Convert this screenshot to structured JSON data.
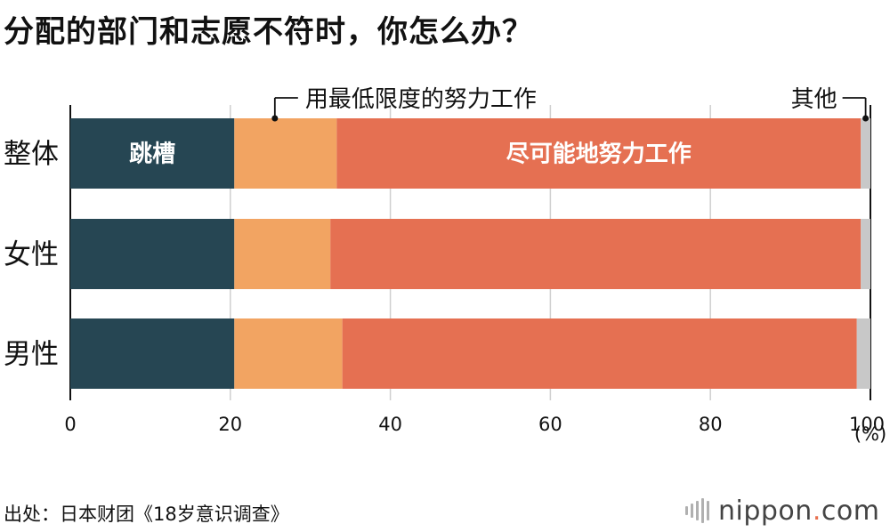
{
  "title": "分配的部门和志愿不符时，你怎么办？",
  "source": "出处：日本财团《18岁意识调查》",
  "logo": {
    "name": "nippon",
    "dot": ".",
    "tld": "com"
  },
  "chart_data": {
    "type": "bar",
    "orientation": "horizontal",
    "stacked": true,
    "categories": [
      "整体",
      "女性",
      "男性"
    ],
    "series": [
      {
        "name": "跳槽",
        "color": "#264653",
        "values": [
          20.5,
          20.5,
          20.5
        ]
      },
      {
        "name": "用最低限度的努力工作",
        "color": "#f2a462",
        "values": [
          12.8,
          12.0,
          13.5
        ]
      },
      {
        "name": "尽可能地努力工作",
        "color": "#e57052",
        "values": [
          65.5,
          66.3,
          64.3
        ]
      },
      {
        "name": "其他",
        "color": "#c8c8c8",
        "values": [
          1.2,
          1.2,
          1.7
        ]
      }
    ],
    "xlim": [
      0,
      100
    ],
    "xticks": [
      "0",
      "20",
      "40",
      "60",
      "80",
      "100"
    ],
    "unit": "(%)",
    "grid": true
  }
}
